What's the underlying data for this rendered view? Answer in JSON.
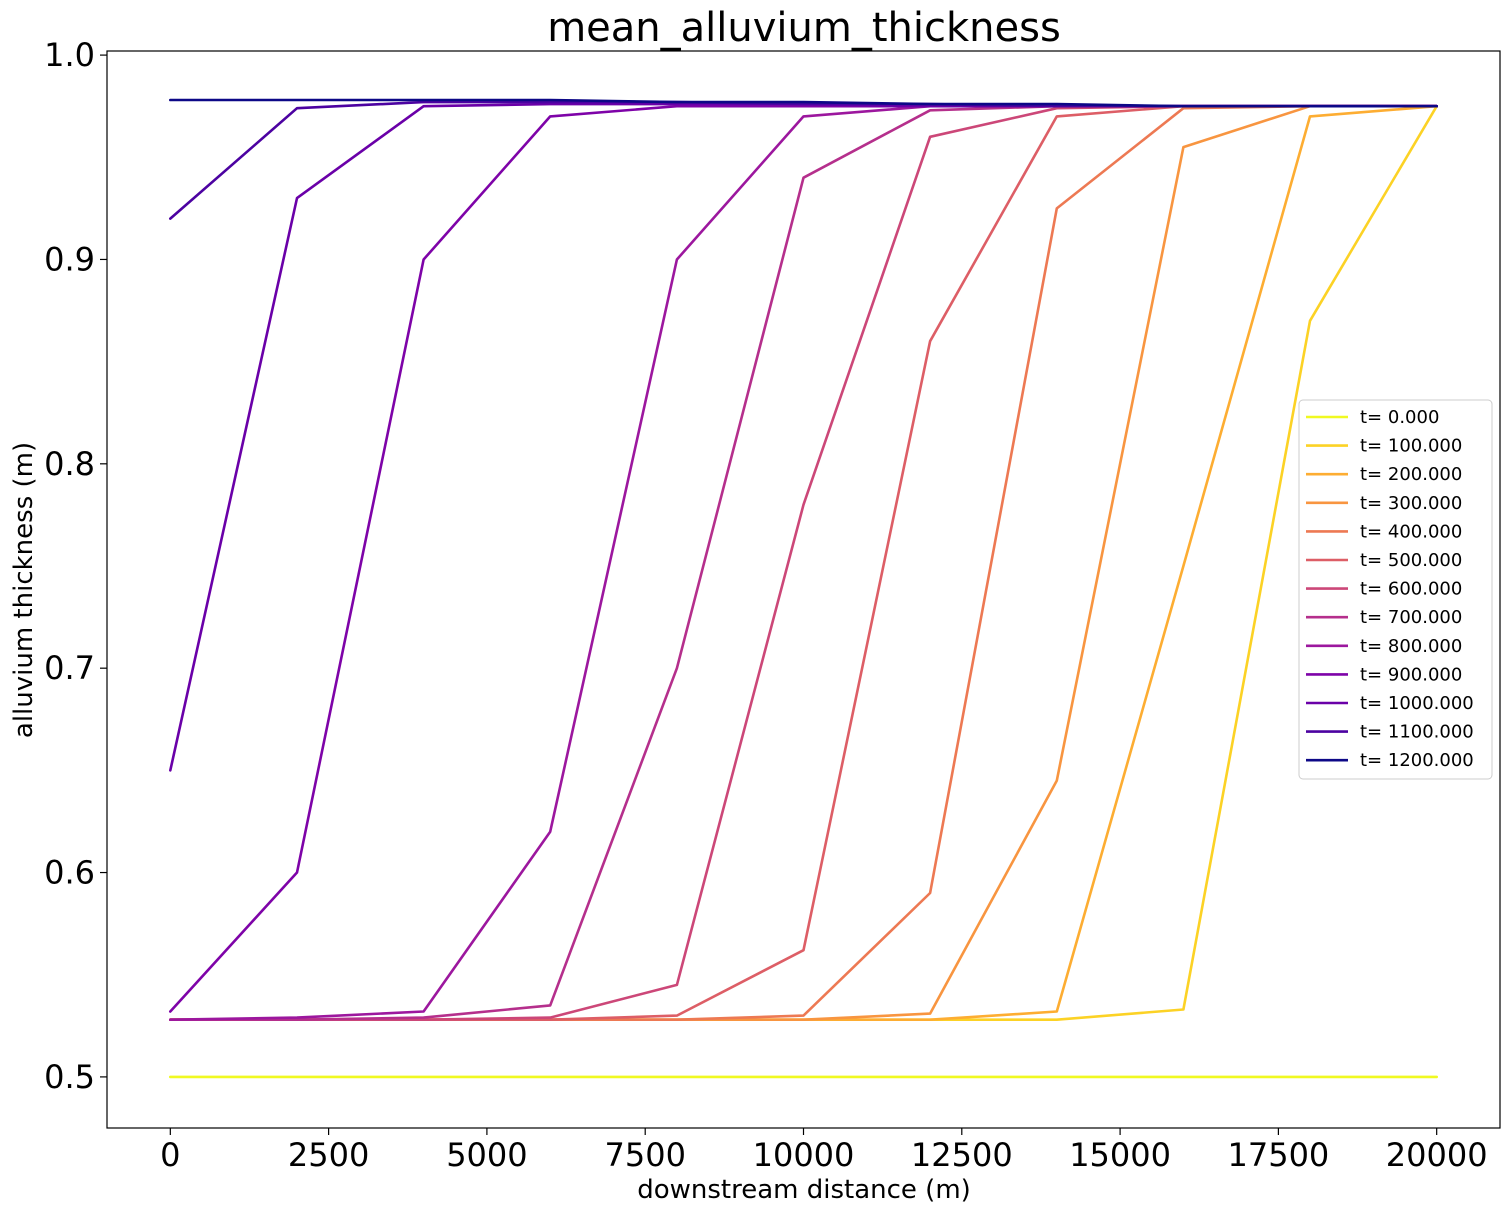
{
  "chart_data": {
    "type": "line",
    "title": "mean_alluvium_thickness",
    "xlabel": "downstream distance (m)",
    "ylabel": "alluvium thickness (m)",
    "xlim": [
      -1000,
      21000
    ],
    "ylim": [
      0.475,
      1.002
    ],
    "xticks": [
      0,
      2500,
      5000,
      7500,
      10000,
      12500,
      15000,
      17500,
      20000
    ],
    "yticks": [
      0.5,
      0.6,
      0.7,
      0.8,
      0.9,
      1.0
    ],
    "xtick_labels": [
      "0",
      "2500",
      "5000",
      "7500",
      "10000",
      "12500",
      "15000",
      "17500",
      "20000"
    ],
    "ytick_labels": [
      "0.5",
      "0.6",
      "0.7",
      "0.8",
      "0.9",
      "1.0"
    ],
    "grid": false,
    "legend_position": "right",
    "x": [
      0,
      2000,
      4000,
      6000,
      8000,
      10000,
      12000,
      14000,
      16000,
      18000,
      20000
    ],
    "series": [
      {
        "name": "t= 0.000",
        "color": "#f0f921",
        "values": [
          0.5,
          0.5,
          0.5,
          0.5,
          0.5,
          0.5,
          0.5,
          0.5,
          0.5,
          0.5,
          0.5
        ]
      },
      {
        "name": "t= 100.000",
        "color": "#fcd225",
        "values": [
          0.528,
          0.528,
          0.528,
          0.528,
          0.528,
          0.528,
          0.528,
          0.528,
          0.533,
          0.87,
          0.975
        ]
      },
      {
        "name": "t= 200.000",
        "color": "#fdad32",
        "values": [
          0.528,
          0.528,
          0.528,
          0.528,
          0.528,
          0.528,
          0.528,
          0.532,
          0.75,
          0.97,
          0.975
        ]
      },
      {
        "name": "t= 300.000",
        "color": "#f89540",
        "values": [
          0.528,
          0.528,
          0.528,
          0.528,
          0.528,
          0.528,
          0.531,
          0.645,
          0.955,
          0.975,
          0.975
        ]
      },
      {
        "name": "t= 400.000",
        "color": "#ed7953",
        "values": [
          0.528,
          0.528,
          0.528,
          0.528,
          0.528,
          0.53,
          0.59,
          0.925,
          0.974,
          0.975,
          0.975
        ]
      },
      {
        "name": "t= 500.000",
        "color": "#dd5e66",
        "values": [
          0.528,
          0.528,
          0.528,
          0.528,
          0.53,
          0.562,
          0.86,
          0.97,
          0.975,
          0.975,
          0.975
        ]
      },
      {
        "name": "t= 600.000",
        "color": "#cc4778",
        "values": [
          0.528,
          0.528,
          0.528,
          0.529,
          0.545,
          0.78,
          0.96,
          0.974,
          0.975,
          0.975,
          0.975
        ]
      },
      {
        "name": "t= 700.000",
        "color": "#b52f8c",
        "values": [
          0.528,
          0.528,
          0.529,
          0.535,
          0.7,
          0.94,
          0.973,
          0.975,
          0.975,
          0.975,
          0.975
        ]
      },
      {
        "name": "t= 800.000",
        "color": "#9c179e",
        "values": [
          0.528,
          0.529,
          0.532,
          0.62,
          0.9,
          0.97,
          0.975,
          0.975,
          0.975,
          0.975,
          0.975
        ]
      },
      {
        "name": "t= 900.000",
        "color": "#7e03a8",
        "values": [
          0.532,
          0.6,
          0.9,
          0.97,
          0.975,
          0.975,
          0.975,
          0.975,
          0.975,
          0.975,
          0.975
        ]
      },
      {
        "name": "t= 1000.000",
        "color": "#6a00a8",
        "values": [
          0.65,
          0.93,
          0.975,
          0.976,
          0.976,
          0.976,
          0.975,
          0.975,
          0.975,
          0.975,
          0.975
        ]
      },
      {
        "name": "t= 1100.000",
        "color": "#4c02a1",
        "values": [
          0.92,
          0.974,
          0.977,
          0.977,
          0.977,
          0.976,
          0.976,
          0.975,
          0.975,
          0.975,
          0.975
        ]
      },
      {
        "name": "t= 1200.000",
        "color": "#0d0887",
        "values": [
          0.978,
          0.978,
          0.978,
          0.978,
          0.977,
          0.977,
          0.976,
          0.976,
          0.975,
          0.975,
          0.975
        ]
      }
    ]
  }
}
